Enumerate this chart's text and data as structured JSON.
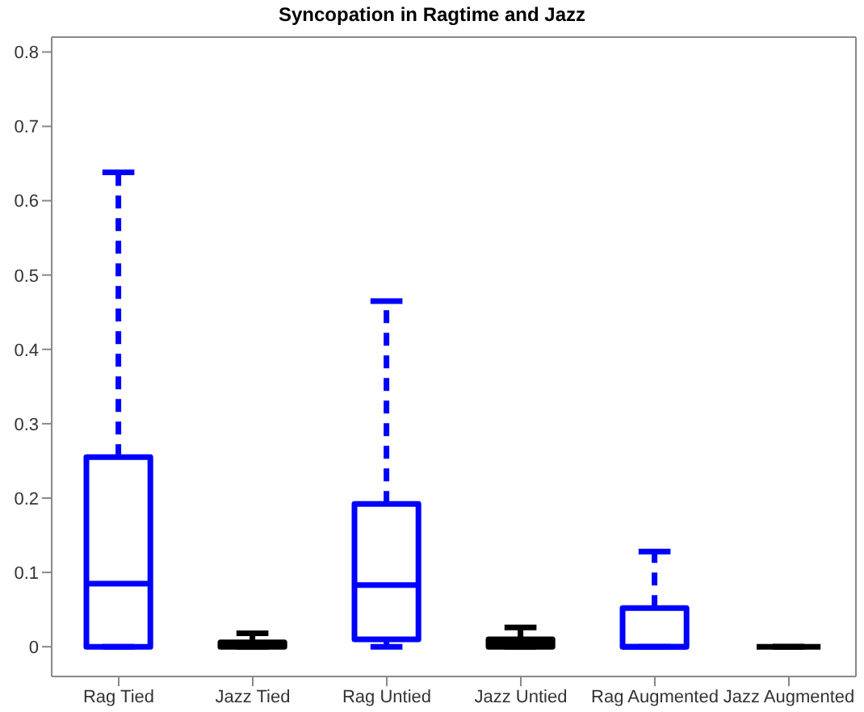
{
  "chart_data": {
    "type": "box",
    "title": "Syncopation in Ragtime and Jazz",
    "categories": [
      "Rag Tied",
      "Jazz Tied",
      "Rag Untied",
      "Jazz Untied",
      "Rag Augmented",
      "Jazz Augmented"
    ],
    "colors": [
      "#0000ff",
      "#000000",
      "#0000ff",
      "#000000",
      "#0000ff",
      "#000000"
    ],
    "boxes": [
      {
        "low": 0,
        "q1": 0,
        "median": 0.085,
        "q3": 0.255,
        "high": 0.638
      },
      {
        "low": 0,
        "q1": 0,
        "median": 0.003,
        "q3": 0.006,
        "high": 0.018
      },
      {
        "low": 0,
        "q1": 0.01,
        "median": 0.083,
        "q3": 0.192,
        "high": 0.465
      },
      {
        "low": 0,
        "q1": 0,
        "median": 0.005,
        "q3": 0.01,
        "high": 0.026
      },
      {
        "low": 0,
        "q1": 0,
        "median": 0,
        "q3": 0.052,
        "high": 0.128
      },
      {
        "low": 0,
        "q1": 0,
        "median": 0,
        "q3": 0,
        "high": 0
      }
    ],
    "line_style": "dashed",
    "ylim": [
      -0.04,
      0.82
    ],
    "yticks": [
      0,
      0.1,
      0.2,
      0.3,
      0.4,
      0.5,
      0.6,
      0.7,
      0.8
    ],
    "grid": false
  }
}
